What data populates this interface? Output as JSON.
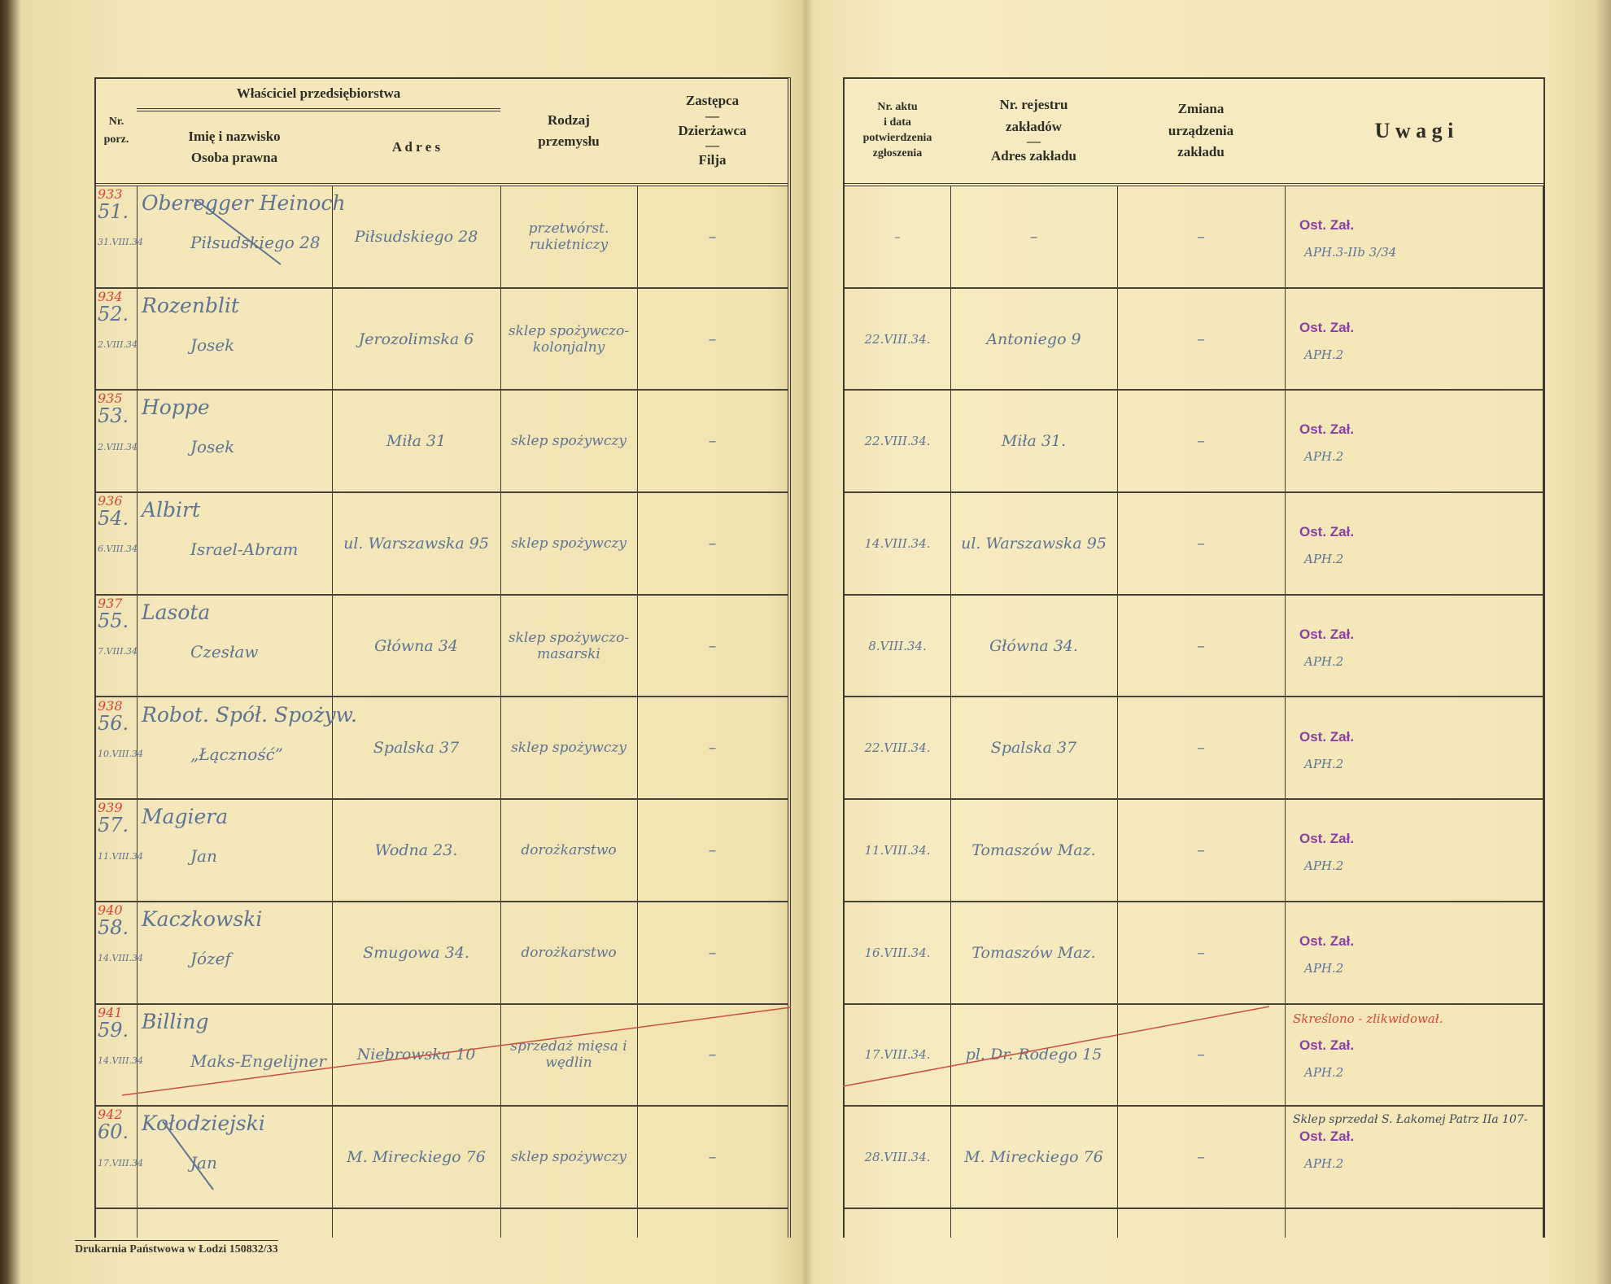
{
  "left_page": {
    "headers": {
      "nr": "Nr.\nporz.",
      "owner_group": "Właściciel przedsiębiorstwa",
      "name": "Imię i nazwisko",
      "legal_person": "Osoba prawna",
      "address": "A d r e s",
      "industry": "Rodzaj\nprzemysłu",
      "deputy": "Zastępca",
      "lessee": "Dzierżawca",
      "branch": "Filja"
    },
    "footer": "Drukarnia Państwowa w Łodzi   150832/33"
  },
  "right_page": {
    "headers": {
      "act": "Nr. aktu\ni data\npotwierdzenia\nzgłoszenia",
      "register": "Nr. rejestru\nzakładów",
      "plant_address": "Adres zakładu",
      "change": "Zmiana\nurządzenia\nzakładu",
      "remarks": "U w a g i"
    }
  },
  "colors": {
    "ink": "#5f7394",
    "red_ink": "#d8443a",
    "stamp": "#8b3fa3",
    "paper": "#f4e8bb"
  },
  "rows": [
    {
      "red_no": "933",
      "no": "51.",
      "date": "31.VIII.34",
      "surname": "Oberegger Heinoch",
      "given": "Piłsudskiego 28",
      "address": "Piłsudskiego 28",
      "industry": "przetwórst. rukietniczy",
      "deputy": "–",
      "act": "–",
      "register": "–",
      "change": "–",
      "note": "",
      "stamp": "Ost. Zał.",
      "ref": "APH.3-IIb 3/34"
    },
    {
      "red_no": "934",
      "no": "52.",
      "date": "2.VIII.34",
      "surname": "Rozenblit",
      "given": "Josek",
      "address": "Jerozolimska 6",
      "industry": "sklep spożywczo-kolonjalny",
      "deputy": "–",
      "act": "22.VIII.34.",
      "register": "Antoniego 9",
      "change": "–",
      "note": "",
      "stamp": "Ost. Zał.",
      "ref": "APH.2"
    },
    {
      "red_no": "935",
      "no": "53.",
      "date": "2.VIII.34",
      "surname": "Hoppe",
      "given": "Josek",
      "address": "Miła 31",
      "industry": "sklep spożywczy",
      "deputy": "–",
      "act": "22.VIII.34.",
      "register": "Miła 31.",
      "change": "–",
      "note": "",
      "stamp": "Ost. Zał.",
      "ref": "APH.2"
    },
    {
      "red_no": "936",
      "no": "54.",
      "date": "6.VIII.34",
      "surname": "Albirt",
      "given": "Israel-Abram",
      "address": "ul. Warszawska 95",
      "industry": "sklep spożywczy",
      "deputy": "–",
      "act": "14.VIII.34.",
      "register": "ul. Warszawska 95",
      "change": "–",
      "note": "",
      "stamp": "Ost. Zał.",
      "ref": "APH.2"
    },
    {
      "red_no": "937",
      "no": "55.",
      "date": "7.VIII.34",
      "surname": "Lasota",
      "given": "Czesław",
      "address": "Główna 34",
      "industry": "sklep spożywczo-masarski",
      "deputy": "–",
      "act": "8.VIII.34.",
      "register": "Główna 34.",
      "change": "–",
      "note": "",
      "stamp": "Ost. Zał.",
      "ref": "APH.2"
    },
    {
      "red_no": "938",
      "no": "56.",
      "date": "10.VIII.34",
      "surname": "Robot. Spół. Spożyw.",
      "given": "„Łączność”",
      "address": "Spalska 37",
      "industry": "sklep spożywczy",
      "deputy": "–",
      "act": "22.VIII.34.",
      "register": "Spalska 37",
      "change": "–",
      "note": "",
      "stamp": "Ost. Zał.",
      "ref": "APH.2"
    },
    {
      "red_no": "939",
      "no": "57.",
      "date": "11.VIII.34",
      "surname": "Magiera",
      "given": "Jan",
      "address": "Wodna 23.",
      "industry": "dorożkarstwo",
      "deputy": "–",
      "act": "11.VIII.34.",
      "register": "Tomaszów Maz.",
      "change": "–",
      "note": "",
      "stamp": "Ost. Zał.",
      "ref": "APH.2"
    },
    {
      "red_no": "940",
      "no": "58.",
      "date": "14.VIII.34",
      "surname": "Kaczkowski",
      "given": "Józef",
      "address": "Smugowa 34.",
      "industry": "dorożkarstwo",
      "deputy": "–",
      "act": "16.VIII.34.",
      "register": "Tomaszów Maz.",
      "change": "–",
      "note": "",
      "stamp": "Ost. Zał.",
      "ref": "APH.2"
    },
    {
      "red_no": "941",
      "no": "59.",
      "date": "14.VIII.34",
      "surname": "Billing",
      "given": "Maks-Engelijner",
      "address": "Niebrowska 10",
      "industry": "sprzedaż mięsa i wędlin",
      "deputy": "–",
      "act": "17.VIII.34.",
      "register": "pl. Dr. Rodego 15",
      "change": "–",
      "note_red": "Skreślono - zlikwidował.",
      "note": "",
      "stamp": "Ost. Zał.",
      "ref": "APH.2"
    },
    {
      "red_no": "942",
      "no": "60.",
      "date": "17.VIII.34",
      "surname": "Kołodziejski",
      "given": "Jan",
      "address": "M. Mireckiego 76",
      "industry": "sklep spożywczy",
      "deputy": "–",
      "act": "28.VIII.34.",
      "register": "M. Mireckiego 76",
      "change": "–",
      "note": "Sklep sprzedał S. Łakomej Patrz IIa 107-",
      "stamp": "Ost. Zał.",
      "ref": "APH.2"
    }
  ]
}
